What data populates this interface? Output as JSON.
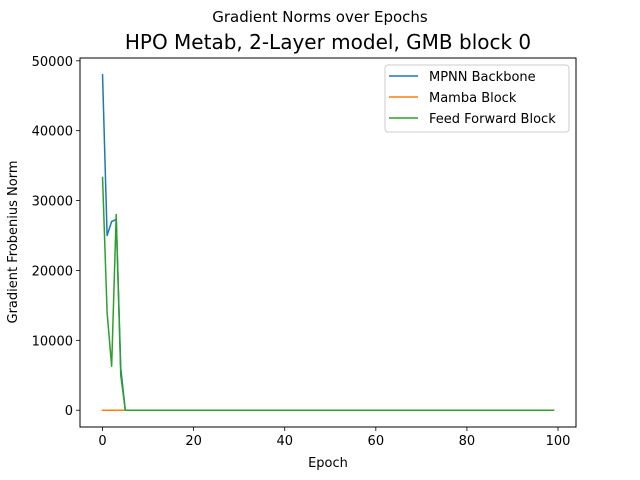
{
  "chart_data": {
    "type": "line",
    "suptitle": "Gradient Norms over Epochs",
    "title": "HPO Metab, 2-Layer model, GMB block 0",
    "xlabel": "Epoch",
    "ylabel": "Gradient Frobenius Norm",
    "xlim": [
      -4.95,
      103.95
    ],
    "ylim": [
      -2400,
      50400
    ],
    "xticks": [
      0,
      20,
      40,
      60,
      80,
      100
    ],
    "yticks": [
      0,
      10000,
      20000,
      30000,
      40000,
      50000
    ],
    "xtick_labels": [
      "0",
      "20",
      "40",
      "60",
      "80",
      "100"
    ],
    "ytick_labels": [
      "0",
      "10000",
      "20000",
      "30000",
      "40000",
      "50000"
    ],
    "legend_position": "top-right",
    "grid": false,
    "series": [
      {
        "name": "MPNN Backbone",
        "color": "#1f77b4",
        "x": [
          0,
          1,
          2,
          3,
          4,
          5,
          99
        ],
        "y": [
          48000,
          25000,
          27000,
          27300,
          6000,
          0,
          0
        ]
      },
      {
        "name": "Mamba Block",
        "color": "#ff7f0e",
        "x": [
          0,
          1,
          2,
          3,
          4,
          5,
          99
        ],
        "y": [
          0,
          0,
          0,
          0,
          0,
          0,
          0
        ]
      },
      {
        "name": "Feed Forward Block",
        "color": "#2ca02c",
        "x": [
          0,
          1,
          2,
          3,
          4,
          5,
          99
        ],
        "y": [
          33300,
          14000,
          6300,
          28000,
          5000,
          0,
          0
        ]
      }
    ]
  }
}
